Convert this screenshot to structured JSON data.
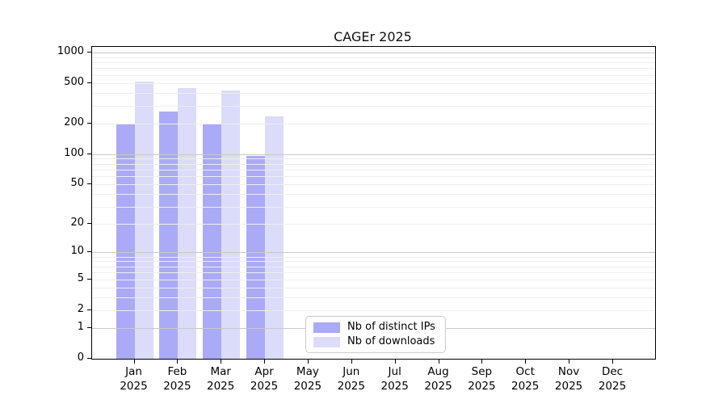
{
  "figure": {
    "background": "#ffffff",
    "frame_color": "#000000"
  },
  "chart_data": {
    "type": "bar",
    "title": "CAGEr 2025",
    "x": {
      "months": [
        "Jan",
        "Feb",
        "Mar",
        "Apr",
        "May",
        "Jun",
        "Jul",
        "Aug",
        "Sep",
        "Oct",
        "Nov",
        "Dec"
      ],
      "year": "2025"
    },
    "series": [
      {
        "name": "Nb of distinct IPs",
        "color": "#aaaaf6",
        "values": [
          200,
          265,
          200,
          95,
          null,
          null,
          null,
          null,
          null,
          null,
          null,
          null
        ]
      },
      {
        "name": "Nb of downloads",
        "color": "#dbdbfa",
        "values": [
          515,
          445,
          420,
          235,
          null,
          null,
          null,
          null,
          null,
          null,
          null,
          null
        ]
      }
    ],
    "y_axis": {
      "scale": "log1p",
      "ticks": [
        0,
        1,
        2,
        5,
        10,
        20,
        50,
        100,
        200,
        500,
        1000
      ],
      "ylim": [
        0,
        1130
      ]
    },
    "grid": {
      "major_lines": [
        1,
        10,
        100,
        1000
      ],
      "minor_lines": [
        2,
        3,
        4,
        5,
        6,
        7,
        8,
        9,
        20,
        30,
        40,
        50,
        60,
        70,
        80,
        90,
        200,
        300,
        400,
        500,
        600,
        700,
        800,
        900
      ],
      "major_color": "#c9c9c9",
      "minor_color": "#eeeeee",
      "drawn_over_bars": true
    },
    "legend": {
      "location": "lower-center-inside"
    }
  }
}
